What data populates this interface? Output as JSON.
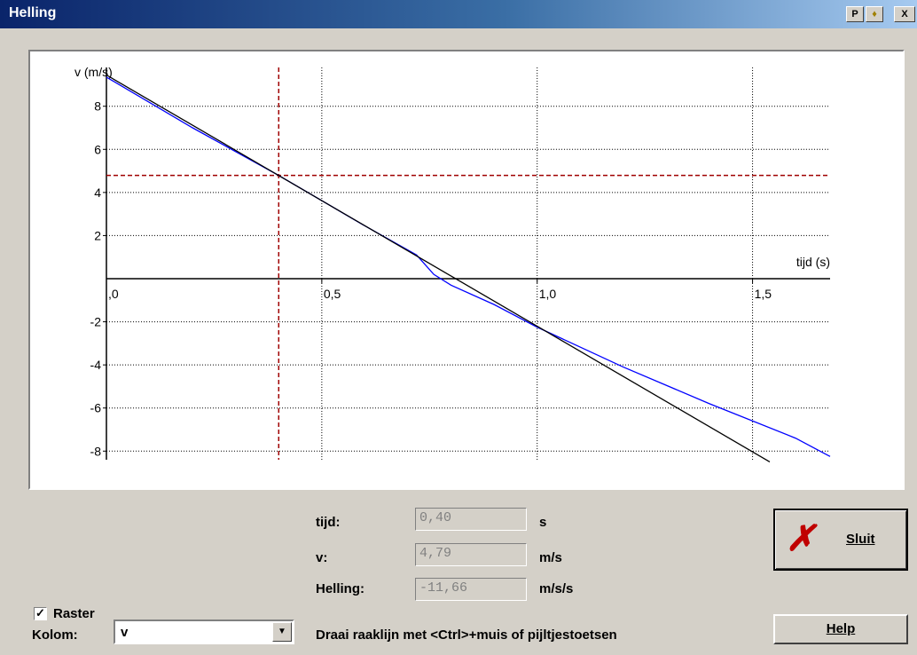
{
  "window": {
    "title": "Helling",
    "buttons": [
      "P",
      "♦",
      "X"
    ]
  },
  "chart_data": {
    "type": "line",
    "ylabel": "v (m/s)",
    "xlabel": "tijd (s)",
    "xlim": [
      0,
      1.68
    ],
    "ylim": [
      -8.4,
      9.8
    ],
    "x_ticks": [
      0,
      0.5,
      1.0,
      1.5
    ],
    "x_tick_labels": [
      ",0",
      "0,5",
      "1,0",
      "1,5"
    ],
    "y_ticks": [
      8,
      6,
      4,
      2,
      -2,
      -4,
      -6,
      -8
    ],
    "y_tick_labels": [
      "8",
      "6",
      "4",
      "2",
      "-2",
      "-4",
      "-6",
      "-8"
    ],
    "grid": true,
    "cursor": {
      "x": 0.4,
      "y": 4.79
    },
    "series": [
      {
        "color": "#0000ff",
        "x": [
          0,
          0.2,
          0.4,
          0.6,
          0.72,
          0.76,
          0.8,
          0.9,
          1.0,
          1.2,
          1.4,
          1.6,
          1.68
        ],
        "y": [
          9.35,
          7.0,
          4.79,
          2.45,
          1.1,
          0.2,
          -0.3,
          -1.2,
          -2.25,
          -4.1,
          -5.8,
          -7.4,
          -8.25
        ]
      },
      {
        "color": "#000000",
        "x": [
          0,
          1.54
        ],
        "y": [
          9.45,
          -8.5
        ]
      }
    ]
  },
  "readout": {
    "tijd_label": "tijd:",
    "tijd_value": "0,40",
    "tijd_unit": "s",
    "v_label": "v:",
    "v_value": "4,79",
    "v_unit": "m/s",
    "helling_label": "Helling:",
    "helling_value": "-11,66",
    "helling_unit": "m/s/s"
  },
  "controls": {
    "raster_label": "Raster",
    "raster_checked": true,
    "kolom_label": "Kolom:",
    "kolom_value": "v",
    "hint": "Draai raaklijn met <Ctrl>+muis of pijltjestoetsen",
    "sluit_label": "Sluit",
    "help_label": "Help"
  },
  "colors": {
    "titlebar": "#0a246a",
    "face": "#d4d0c8",
    "cursor": "#a00000",
    "fit": "#0000ff",
    "tangent": "#000000"
  }
}
